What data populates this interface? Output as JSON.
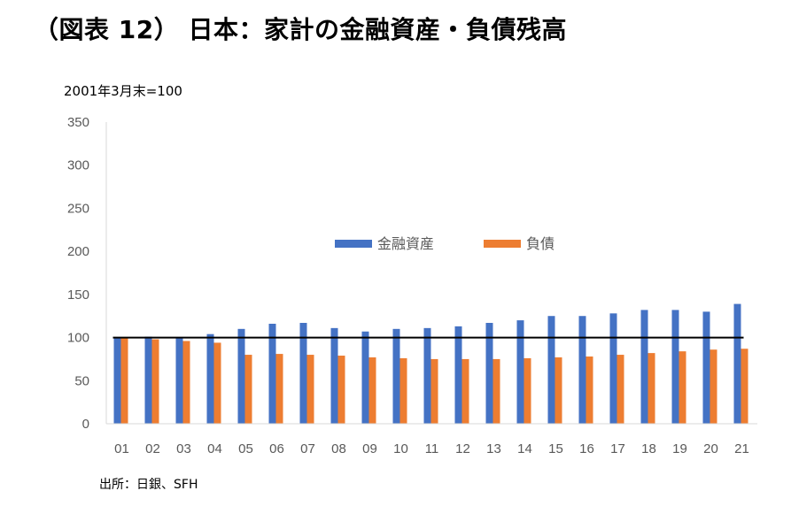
{
  "title": "（図表 12） 日本：家計の金融資産・負債残高",
  "unit_note": "2001年3月末=100",
  "source": "出所：日銀、SFH",
  "chart_data": {
    "type": "bar",
    "title": "（図表 12） 日本：家計の金融資産・負債残高",
    "xlabel": "",
    "ylabel": "2001年3月末=100",
    "ylim": [
      0,
      350
    ],
    "yticks": [
      0,
      50,
      100,
      150,
      200,
      250,
      300,
      350
    ],
    "categories": [
      "01",
      "02",
      "03",
      "04",
      "05",
      "06",
      "07",
      "08",
      "09",
      "10",
      "11",
      "12",
      "13",
      "14",
      "15",
      "16",
      "17",
      "18",
      "19",
      "20",
      "21"
    ],
    "series": [
      {
        "name": "金融資産",
        "color": "#4472C4",
        "values": [
          100,
          101,
          100,
          104,
          110,
          116,
          117,
          111,
          107,
          110,
          111,
          113,
          117,
          120,
          125,
          125,
          128,
          132,
          132,
          130,
          139
        ]
      },
      {
        "name": "負債",
        "color": "#ED7D31",
        "values": [
          100,
          98,
          96,
          94,
          80,
          81,
          80,
          79,
          77,
          76,
          75,
          75,
          75,
          76,
          77,
          78,
          80,
          82,
          84,
          86,
          87
        ]
      }
    ],
    "reference_line": {
      "value": 100,
      "color": "#000000"
    },
    "legend_position": "center",
    "grid": false
  }
}
